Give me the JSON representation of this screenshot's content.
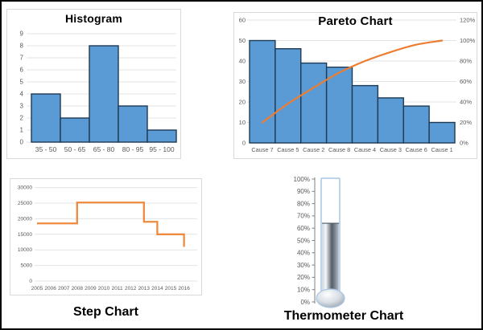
{
  "colors": {
    "bar_fill": "#5B9BD5",
    "bar_border": "#1F3A54",
    "line_orange": "#ED7D31",
    "step_orange": "#ED8A3F",
    "grid": "#E3E3E3",
    "axis_text": "#595959",
    "title_text": "#000000",
    "panel_border": "#D9D9D9",
    "thermo_border": "#A9C6E3",
    "thermo_axis": "#808080",
    "thermo_dark": "#555E69",
    "thermo_light": "#F5F8FA"
  },
  "chart_data": [
    {
      "id": "histogram",
      "type": "bar",
      "title": "Histogram",
      "title_position": "top",
      "categories": [
        "35 - 50",
        "50 - 65",
        "65 - 80",
        "80 - 95",
        "95 - 100"
      ],
      "values": [
        4,
        2,
        8,
        3,
        1
      ],
      "ylim": [
        0,
        9
      ],
      "ytick_step": 1,
      "grid": true,
      "legend": "none"
    },
    {
      "id": "pareto",
      "type": "bar+line",
      "title": "Pareto Chart",
      "title_position": "top",
      "categories": [
        "Cause 7",
        "Cause 5",
        "Cause 2",
        "Cause 8",
        "Cause 4",
        "Cause 3",
        "Cause 6",
        "Cause 1"
      ],
      "series": [
        {
          "name": "frequency",
          "type": "bar",
          "axis": "left",
          "values": [
            50,
            46,
            39,
            37,
            28,
            22,
            18,
            10
          ]
        },
        {
          "name": "cumulative-percent",
          "type": "line",
          "axis": "right",
          "values_pct": [
            20,
            38.4,
            54,
            68.8,
            80,
            88.8,
            96,
            100
          ]
        }
      ],
      "left_ylim": [
        0,
        60
      ],
      "left_ytick_step": 10,
      "right_ylim_pct": [
        0,
        120
      ],
      "right_ytick_step_pct": 20,
      "grid": true,
      "legend": "none"
    },
    {
      "id": "step",
      "type": "line",
      "step_mode": "after",
      "title": "Step Chart",
      "title_position": "below",
      "x_ticks": [
        2005,
        2006,
        2007,
        2008,
        2009,
        2010,
        2011,
        2012,
        2013,
        2014,
        2015,
        2016
      ],
      "points": [
        [
          2005,
          18500
        ],
        [
          2008,
          25200
        ],
        [
          2013,
          19000
        ],
        [
          2014,
          15000
        ],
        [
          2016,
          11000
        ]
      ],
      "ylim": [
        0,
        30000
      ],
      "ytick_step": 5000,
      "grid": true,
      "legend": "none"
    },
    {
      "id": "thermometer",
      "type": "thermometer",
      "title": "Thermometer Chart",
      "title_position": "below",
      "value_pct": 64,
      "ylim_pct": [
        0,
        100
      ],
      "ytick_step_pct": 10
    }
  ]
}
